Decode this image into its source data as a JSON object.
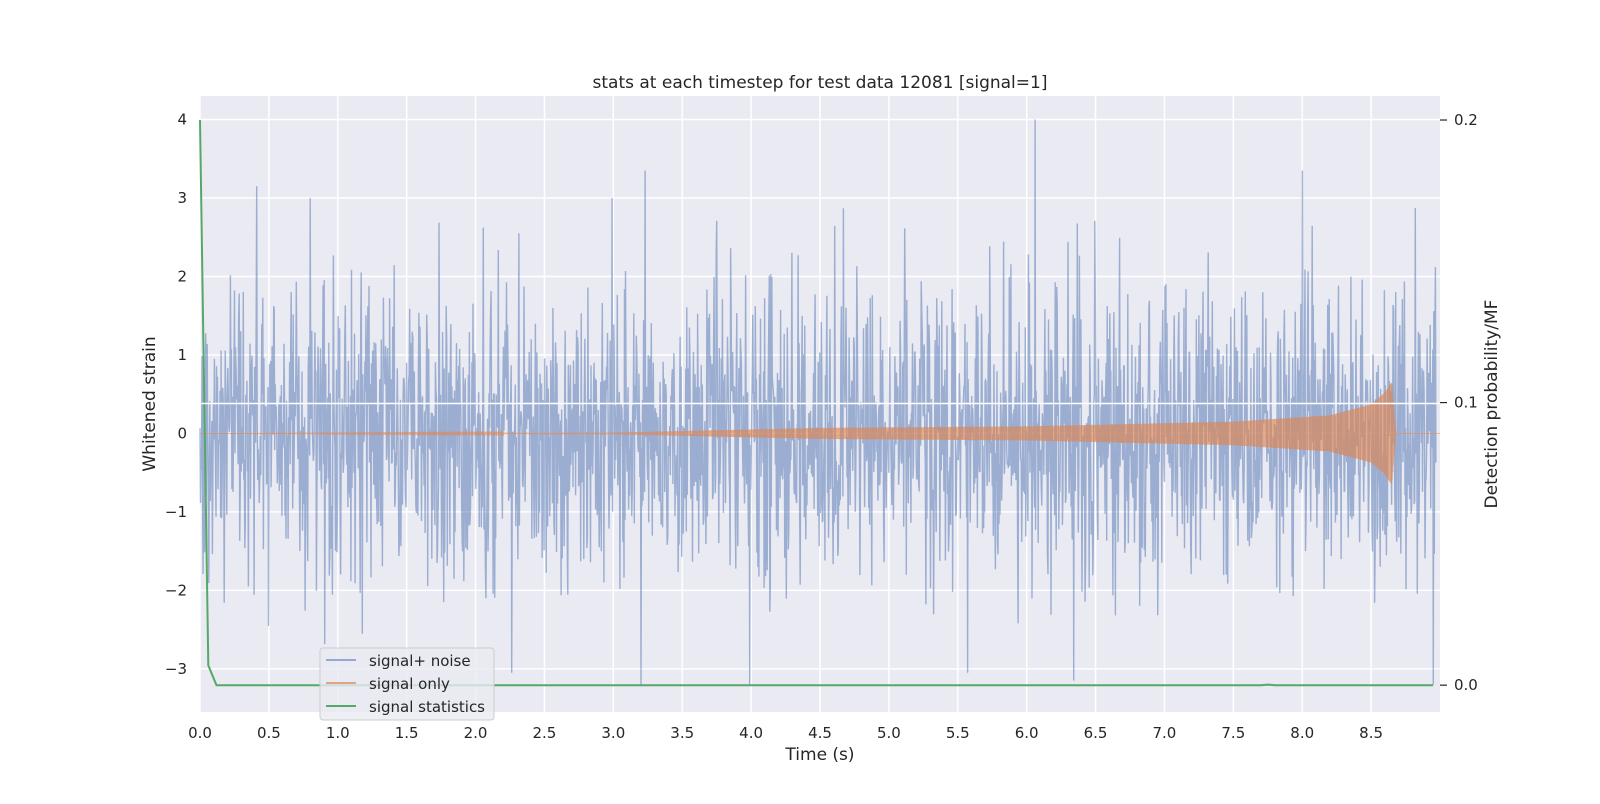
{
  "chart_data": {
    "type": "line",
    "title": "stats at each timestep for test data 12081 [signal=1]",
    "xlabel": "Time (s)",
    "ylabel": "Whitened strain",
    "ylabel_right": "Detection probability/MF",
    "xlim": [
      0.0,
      9.0
    ],
    "ylim": [
      -3.55,
      4.3
    ],
    "ylim_right": [
      -0.0095,
      0.2085
    ],
    "x_ticks": [
      "0.0",
      "0.5",
      "1.0",
      "1.5",
      "2.0",
      "2.5",
      "3.0",
      "3.5",
      "4.0",
      "4.5",
      "5.0",
      "5.5",
      "6.0",
      "6.5",
      "7.0",
      "7.5",
      "8.0",
      "8.5"
    ],
    "y_ticks": [
      "−3",
      "−2",
      "−1",
      "0",
      "1",
      "2",
      "3",
      "4"
    ],
    "y_ticks_right": [
      "0.0",
      "0.1",
      "0.2"
    ],
    "grid": true,
    "legend_placement": "lower-left",
    "background_color": "#eaeaf2",
    "series": [
      {
        "name": "signal+ noise",
        "color": "#4c72b0",
        "axis": "left",
        "description": "whitened strain, gaussian-like noise between approx -3.2 and 4.0",
        "peaks": [
          {
            "x": 0.41,
            "y": 3.15
          },
          {
            "x": 3.23,
            "y": 3.35
          },
          {
            "x": 6.06,
            "y": 4.0
          },
          {
            "x": 8.0,
            "y": 3.35
          },
          {
            "x": 3.2,
            "y": -3.2
          },
          {
            "x": 3.99,
            "y": -3.2
          },
          {
            "x": 6.34,
            "y": -3.15
          },
          {
            "x": 8.95,
            "y": -3.2
          }
        ]
      },
      {
        "name": "signal only",
        "color": "#dd8452",
        "axis": "left",
        "description": "chirp waveform, amplitude growing toward merger",
        "envelope": {
          "x": [
            0.0,
            3.0,
            4.5,
            6.0,
            7.5,
            8.2,
            8.5,
            8.6,
            8.65,
            8.68,
            9.0
          ],
          "amplitude": [
            0.0,
            0.01,
            0.07,
            0.09,
            0.15,
            0.23,
            0.37,
            0.52,
            0.65,
            0.0,
            0.0
          ]
        }
      },
      {
        "name": "signal statistics",
        "color": "#55a868",
        "axis": "right",
        "x": [
          0.0,
          0.06,
          0.12,
          7.7,
          7.75,
          7.8,
          8.95
        ],
        "y": [
          0.2,
          0.007,
          0.0,
          0.0,
          0.0002,
          0.0,
          0.0
        ]
      }
    ]
  }
}
